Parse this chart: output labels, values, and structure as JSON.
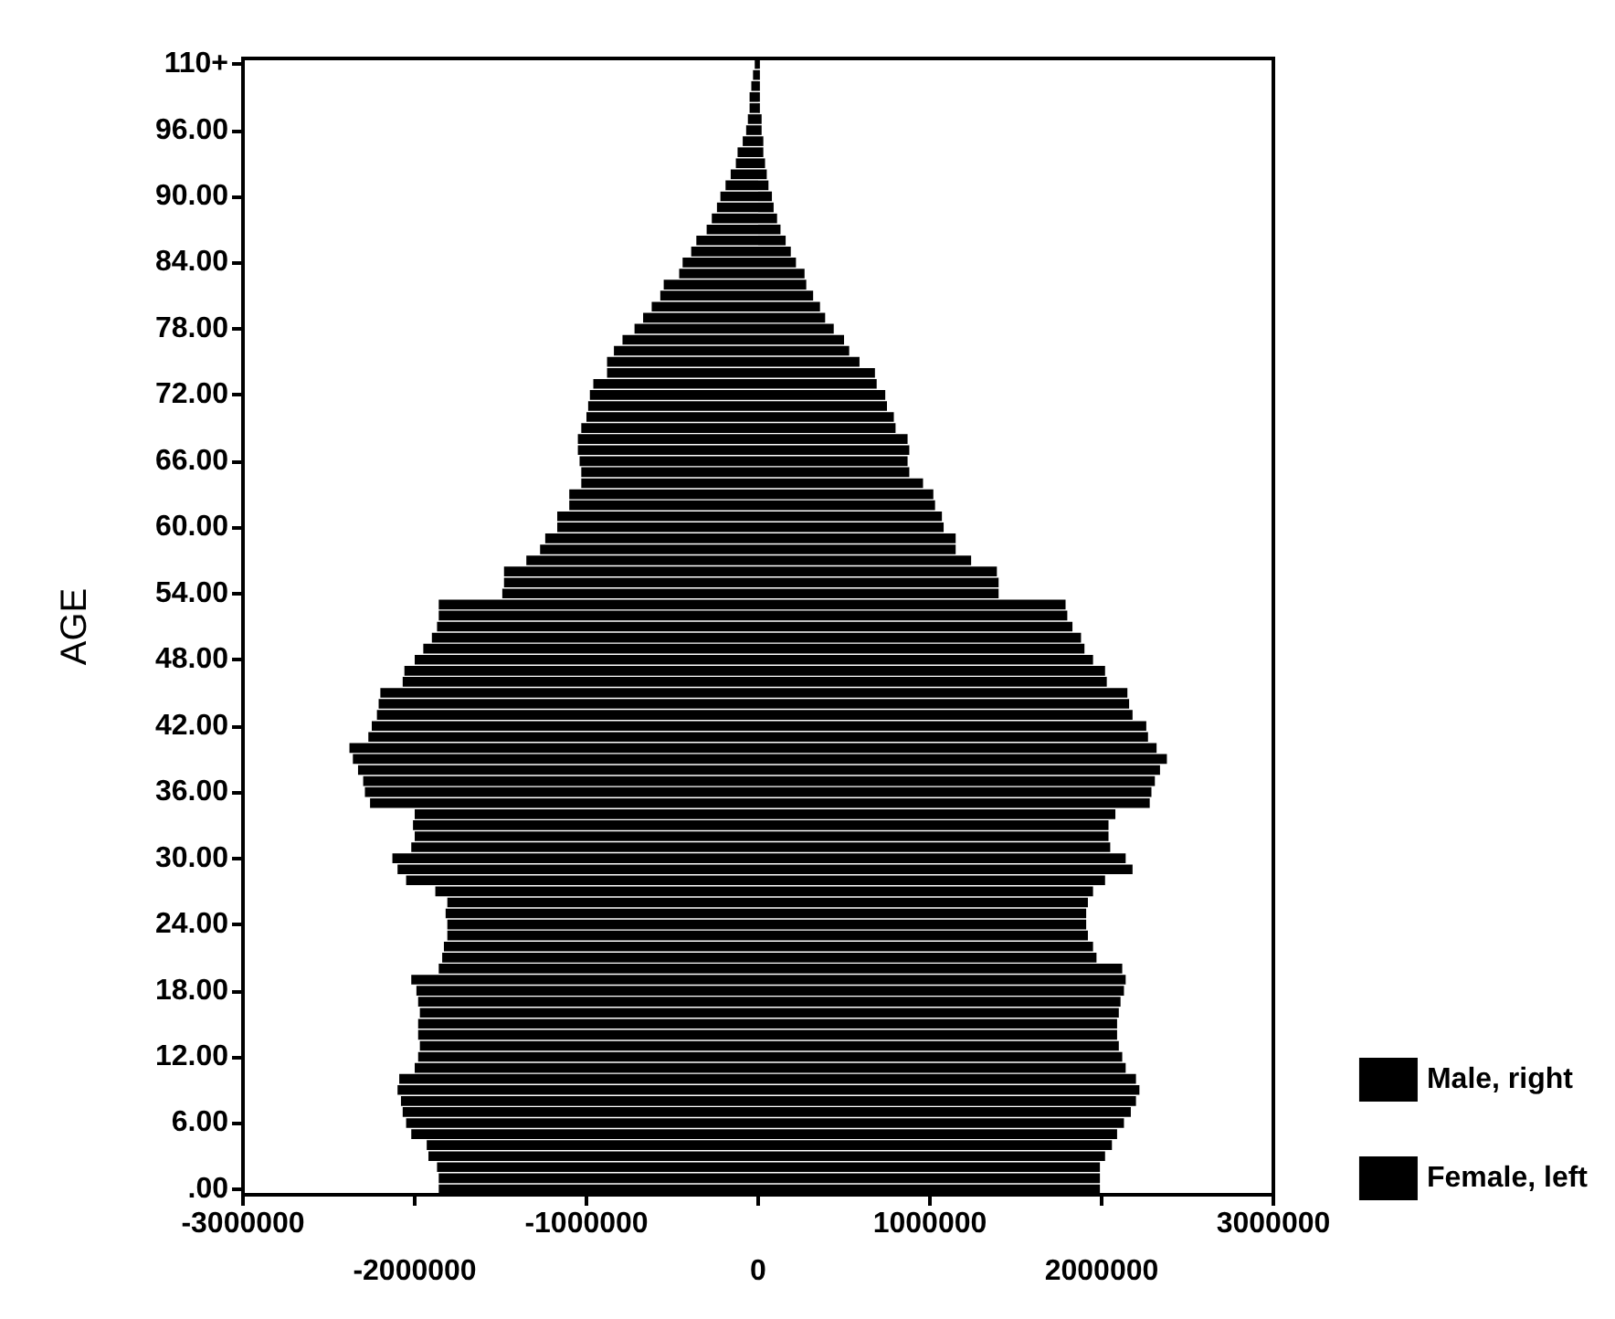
{
  "chart_data": {
    "type": "bar",
    "orientation": "horizontal",
    "stacked": true,
    "ylabel": "AGE",
    "categories": [
      "110+",
      null,
      null,
      null,
      null,
      null,
      "96.00",
      null,
      null,
      null,
      null,
      null,
      "90.00",
      null,
      null,
      null,
      null,
      null,
      "84.00",
      null,
      null,
      null,
      null,
      null,
      "78.00",
      null,
      null,
      null,
      null,
      null,
      "72.00",
      null,
      null,
      null,
      null,
      null,
      "66.00",
      null,
      null,
      null,
      null,
      null,
      "60.00",
      null,
      null,
      null,
      null,
      null,
      "54.00",
      null,
      null,
      null,
      null,
      null,
      "48.00",
      null,
      null,
      null,
      null,
      null,
      "42.00",
      null,
      null,
      null,
      null,
      null,
      "36.00",
      null,
      null,
      null,
      null,
      null,
      "30.00",
      null,
      null,
      null,
      null,
      null,
      "24.00",
      null,
      null,
      null,
      null,
      null,
      "18.00",
      null,
      null,
      null,
      null,
      null,
      "12.00",
      null,
      null,
      null,
      null,
      null,
      "6.00",
      null,
      null,
      null,
      null,
      null,
      ".00"
    ],
    "series": [
      {
        "name": "Male, right",
        "color": "#000000",
        "values": [
          10000,
          10000,
          10000,
          10000,
          10000,
          20000,
          20000,
          30000,
          30000,
          40000,
          50000,
          60000,
          80000,
          90000,
          110000,
          130000,
          160000,
          190000,
          220000,
          270000,
          280000,
          320000,
          360000,
          390000,
          440000,
          500000,
          530000,
          590000,
          680000,
          690000,
          740000,
          750000,
          790000,
          800000,
          870000,
          880000,
          870000,
          880000,
          960000,
          1020000,
          1030000,
          1070000,
          1080000,
          1150000,
          1150000,
          1240000,
          1390000,
          1400000,
          1400000,
          1790000,
          1800000,
          1830000,
          1880000,
          1900000,
          1950000,
          2020000,
          2030000,
          2150000,
          2160000,
          2180000,
          2260000,
          2270000,
          2320000,
          2380000,
          2340000,
          2310000,
          2290000,
          2280000,
          2080000,
          2040000,
          2040000,
          2050000,
          2140000,
          2180000,
          2020000,
          1950000,
          1920000,
          1910000,
          1910000,
          1920000,
          1950000,
          1970000,
          2120000,
          2140000,
          2130000,
          2110000,
          2100000,
          2090000,
          2090000,
          2100000,
          2120000,
          2140000,
          2200000,
          2220000,
          2200000,
          2170000,
          2130000,
          2090000,
          2060000,
          2020000,
          1990000,
          1990000,
          1990000
        ]
      },
      {
        "name": "Female, left",
        "color": "#000000",
        "values": [
          -20000,
          -30000,
          -40000,
          -50000,
          -50000,
          -60000,
          -70000,
          -90000,
          -120000,
          -130000,
          -160000,
          -190000,
          -220000,
          -240000,
          -270000,
          -300000,
          -360000,
          -390000,
          -440000,
          -460000,
          -550000,
          -570000,
          -620000,
          -670000,
          -720000,
          -790000,
          -840000,
          -880000,
          -880000,
          -960000,
          -980000,
          -990000,
          -1000000,
          -1030000,
          -1050000,
          -1050000,
          -1040000,
          -1030000,
          -1030000,
          -1100000,
          -1100000,
          -1170000,
          -1170000,
          -1240000,
          -1270000,
          -1350000,
          -1480000,
          -1480000,
          -1490000,
          -1860000,
          -1860000,
          -1870000,
          -1900000,
          -1950000,
          -2000000,
          -2060000,
          -2070000,
          -2200000,
          -2210000,
          -2220000,
          -2250000,
          -2270000,
          -2380000,
          -2360000,
          -2330000,
          -2300000,
          -2290000,
          -2260000,
          -2000000,
          -2010000,
          -2000000,
          -2020000,
          -2130000,
          -2100000,
          -2050000,
          -1880000,
          -1810000,
          -1820000,
          -1810000,
          -1810000,
          -1830000,
          -1840000,
          -1860000,
          -2020000,
          -1990000,
          -1980000,
          -1970000,
          -1980000,
          -1980000,
          -1970000,
          -1980000,
          -2000000,
          -2090000,
          -2100000,
          -2080000,
          -2070000,
          -2050000,
          -2020000,
          -1930000,
          -1920000,
          -1870000,
          -1860000,
          -1860000
        ]
      }
    ],
    "xlim": [
      -3000000,
      3000000
    ],
    "xticks": [
      -3000000,
      {
        "value": -2000000,
        "label": null
      },
      -1000000,
      {
        "value": 0,
        "label": null
      },
      1000000,
      {
        "value": 2000000,
        "label": null
      },
      3000000
    ],
    "x2lim": [
      -3000000,
      3000000
    ],
    "x2ticks": [
      -2000000,
      0,
      2000000
    ],
    "legend": "bottom right"
  }
}
